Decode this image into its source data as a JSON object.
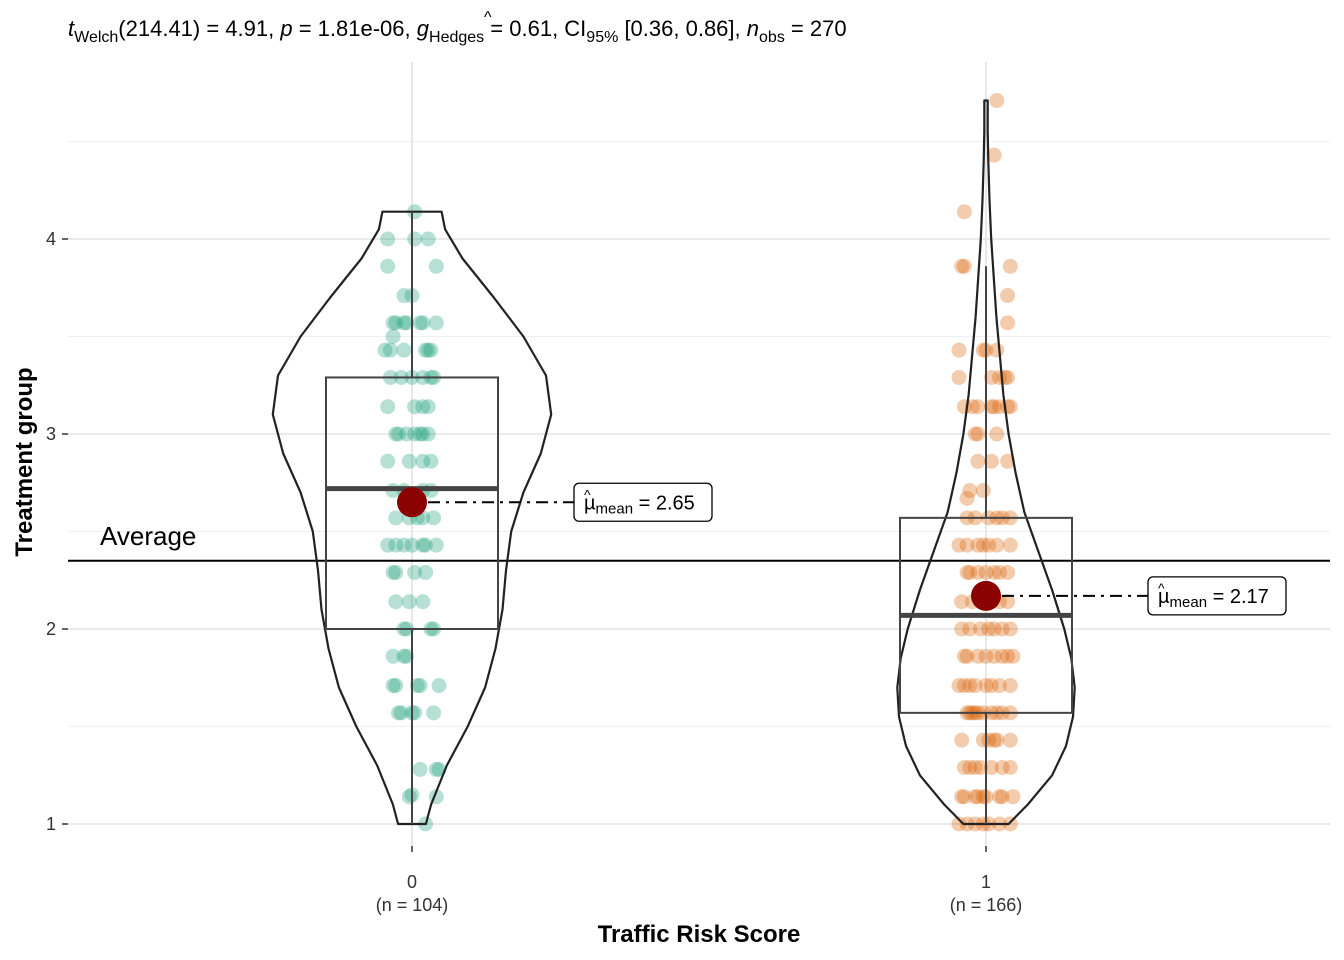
{
  "chart_data": {
    "type": "violin-box-scatter",
    "subtitle": {
      "t": "t",
      "t_sub": "Welch",
      "df_stat": "(214.41) = 4.91, ",
      "p": "p",
      "p_val": " = 1.81e-06, ",
      "g": "g",
      "g_hat": "^",
      "g_sub": "Hedges",
      "g_val": " = 0.61, CI",
      "ci_sub": "95%",
      "ci_val": " [0.36, 0.86], ",
      "n": "n",
      "n_sub": "obs",
      "n_val": " = 270"
    },
    "xlabel": "Traffic Risk Score",
    "ylabel": "Treatment group",
    "yticks": [
      1,
      2,
      3,
      4
    ],
    "ylim": [
      0.9,
      4.88
    ],
    "reference_line": {
      "value": 2.35,
      "label": "Average"
    },
    "groups": [
      {
        "category": "0",
        "n_label": "(n = 104)",
        "color": "#1B9E77",
        "mean": 2.65,
        "mean_label_mu": "µ",
        "mean_label_sub": "mean",
        "mean_label_val": " = 2.65",
        "box": {
          "q1": 2.0,
          "median": 2.72,
          "q3": 3.29,
          "whisker_low": 1.0,
          "whisker_high": 4.14
        },
        "violin": {
          "y": [
            1.0,
            1.1,
            1.3,
            1.5,
            1.7,
            1.9,
            2.1,
            2.3,
            2.5,
            2.7,
            2.9,
            3.1,
            3.3,
            3.5,
            3.7,
            3.9,
            4.05,
            4.14
          ],
          "w": [
            0.08,
            0.11,
            0.2,
            0.32,
            0.42,
            0.48,
            0.52,
            0.54,
            0.57,
            0.64,
            0.74,
            0.8,
            0.77,
            0.64,
            0.47,
            0.29,
            0.19,
            0.17
          ]
        },
        "points": [
          [
            0.05,
            1.0
          ],
          [
            0.0,
            1.15
          ],
          [
            -0.01,
            1.14
          ],
          [
            0.09,
            1.14
          ],
          [
            0.1,
            1.28
          ],
          [
            0.03,
            1.28
          ],
          [
            0.09,
            1.28
          ],
          [
            -0.05,
            1.57
          ],
          [
            -0.04,
            1.57
          ],
          [
            0.0,
            1.57
          ],
          [
            0.01,
            1.57
          ],
          [
            0.08,
            1.57
          ],
          [
            -0.07,
            1.71
          ],
          [
            -0.06,
            1.71
          ],
          [
            0.02,
            1.71
          ],
          [
            0.03,
            1.71
          ],
          [
            0.1,
            1.71
          ],
          [
            -0.07,
            1.86
          ],
          [
            -0.03,
            1.86
          ],
          [
            -0.02,
            1.86
          ],
          [
            -0.03,
            2.0
          ],
          [
            -0.02,
            2.0
          ],
          [
            0.07,
            2.0
          ],
          [
            0.08,
            2.0
          ],
          [
            -0.06,
            2.14
          ],
          [
            -0.01,
            2.14
          ],
          [
            0.04,
            2.14
          ],
          [
            -0.07,
            2.29
          ],
          [
            -0.06,
            2.29
          ],
          [
            0.01,
            2.29
          ],
          [
            0.05,
            2.29
          ],
          [
            -0.09,
            2.43
          ],
          [
            -0.06,
            2.43
          ],
          [
            -0.03,
            2.43
          ],
          [
            0.0,
            2.43
          ],
          [
            0.04,
            2.43
          ],
          [
            0.05,
            2.43
          ],
          [
            0.09,
            2.43
          ],
          [
            -0.06,
            2.57
          ],
          [
            -0.01,
            2.57
          ],
          [
            0.02,
            2.57
          ],
          [
            0.04,
            2.57
          ],
          [
            0.08,
            2.57
          ],
          [
            -0.07,
            2.71
          ],
          [
            -0.03,
            2.71
          ],
          [
            0.04,
            2.71
          ],
          [
            0.07,
            2.71
          ],
          [
            -0.09,
            2.86
          ],
          [
            -0.01,
            2.86
          ],
          [
            0.04,
            2.86
          ],
          [
            0.07,
            2.86
          ],
          [
            -0.06,
            3.0
          ],
          [
            -0.05,
            3.0
          ],
          [
            -0.02,
            3.0
          ],
          [
            0.01,
            3.0
          ],
          [
            0.03,
            3.0
          ],
          [
            0.04,
            3.0
          ],
          [
            0.06,
            3.0
          ],
          [
            -0.09,
            3.14
          ],
          [
            0.01,
            3.14
          ],
          [
            0.04,
            3.14
          ],
          [
            0.06,
            3.14
          ],
          [
            -0.08,
            3.29
          ],
          [
            -0.04,
            3.29
          ],
          [
            0.0,
            3.29
          ],
          [
            0.04,
            3.29
          ],
          [
            0.07,
            3.29
          ],
          [
            0.08,
            3.29
          ],
          [
            -0.1,
            3.43
          ],
          [
            -0.08,
            3.43
          ],
          [
            -0.03,
            3.43
          ],
          [
            0.05,
            3.43
          ],
          [
            0.06,
            3.43
          ],
          [
            0.07,
            3.43
          ],
          [
            -0.07,
            3.5
          ],
          [
            -0.07,
            3.57
          ],
          [
            -0.06,
            3.57
          ],
          [
            -0.03,
            3.57
          ],
          [
            -0.02,
            3.57
          ],
          [
            0.03,
            3.57
          ],
          [
            0.04,
            3.57
          ],
          [
            0.09,
            3.57
          ],
          [
            -0.03,
            3.71
          ],
          [
            0.0,
            3.71
          ],
          [
            -0.09,
            3.86
          ],
          [
            0.09,
            3.86
          ],
          [
            -0.09,
            4.0
          ],
          [
            0.01,
            4.0
          ],
          [
            0.06,
            4.0
          ],
          [
            0.01,
            4.14
          ]
        ]
      },
      {
        "category": "1",
        "n_label": "(n = 166)",
        "color": "#D95F02",
        "mean": 2.17,
        "mean_label_mu": "µ",
        "mean_label_sub": "mean",
        "mean_label_val": " = 2.17",
        "box": {
          "q1": 1.57,
          "median": 2.07,
          "q3": 2.57,
          "whisker_low": 1.0,
          "whisker_high": 3.86
        },
        "violin": {
          "y": [
            1.0,
            1.1,
            1.25,
            1.4,
            1.55,
            1.7,
            1.85,
            2.0,
            2.2,
            2.4,
            2.6,
            2.8,
            3.0,
            3.2,
            3.4,
            3.6,
            3.8,
            4.0,
            4.2,
            4.4,
            4.55,
            4.65,
            4.71
          ],
          "w": [
            0.13,
            0.24,
            0.38,
            0.46,
            0.5,
            0.51,
            0.49,
            0.45,
            0.38,
            0.3,
            0.22,
            0.17,
            0.13,
            0.1,
            0.08,
            0.06,
            0.045,
            0.03,
            0.02,
            0.013,
            0.01,
            0.01,
            0.01
          ]
        },
        "points": [
          [
            -0.1,
            1.0
          ],
          [
            -0.07,
            1.0
          ],
          [
            -0.04,
            1.0
          ],
          [
            -0.01,
            1.0
          ],
          [
            0.01,
            1.0
          ],
          [
            0.05,
            1.0
          ],
          [
            0.09,
            1.0
          ],
          [
            -0.09,
            1.14
          ],
          [
            -0.08,
            1.14
          ],
          [
            -0.04,
            1.14
          ],
          [
            -0.03,
            1.14
          ],
          [
            -0.01,
            1.14
          ],
          [
            0.0,
            1.14
          ],
          [
            0.05,
            1.14
          ],
          [
            0.06,
            1.14
          ],
          [
            0.1,
            1.14
          ],
          [
            -0.08,
            1.29
          ],
          [
            -0.06,
            1.29
          ],
          [
            -0.04,
            1.29
          ],
          [
            -0.02,
            1.29
          ],
          [
            0.02,
            1.29
          ],
          [
            0.06,
            1.29
          ],
          [
            0.09,
            1.29
          ],
          [
            -0.09,
            1.43
          ],
          [
            -0.01,
            1.43
          ],
          [
            0.01,
            1.43
          ],
          [
            0.03,
            1.43
          ],
          [
            0.04,
            1.43
          ],
          [
            0.09,
            1.43
          ],
          [
            -0.07,
            1.57
          ],
          [
            -0.06,
            1.57
          ],
          [
            -0.05,
            1.57
          ],
          [
            -0.04,
            1.57
          ],
          [
            -0.03,
            1.57
          ],
          [
            -0.01,
            1.57
          ],
          [
            0.02,
            1.57
          ],
          [
            0.04,
            1.57
          ],
          [
            0.06,
            1.57
          ],
          [
            0.09,
            1.57
          ],
          [
            -0.1,
            1.71
          ],
          [
            -0.08,
            1.71
          ],
          [
            -0.06,
            1.71
          ],
          [
            -0.04,
            1.71
          ],
          [
            0.0,
            1.71
          ],
          [
            0.02,
            1.71
          ],
          [
            0.05,
            1.71
          ],
          [
            0.09,
            1.71
          ],
          [
            -0.08,
            1.86
          ],
          [
            -0.07,
            1.86
          ],
          [
            -0.03,
            1.86
          ],
          [
            0.0,
            1.86
          ],
          [
            0.03,
            1.86
          ],
          [
            0.06,
            1.86
          ],
          [
            0.08,
            1.86
          ],
          [
            0.1,
            1.86
          ],
          [
            -0.09,
            2.0
          ],
          [
            -0.06,
            2.0
          ],
          [
            -0.02,
            2.0
          ],
          [
            0.01,
            2.0
          ],
          [
            0.03,
            2.0
          ],
          [
            0.06,
            2.0
          ],
          [
            0.09,
            2.0
          ],
          [
            -0.09,
            2.14
          ],
          [
            -0.05,
            2.14
          ],
          [
            -0.01,
            2.14
          ],
          [
            0.02,
            2.14
          ],
          [
            0.05,
            2.14
          ],
          [
            0.08,
            2.14
          ],
          [
            -0.07,
            2.29
          ],
          [
            -0.06,
            2.29
          ],
          [
            -0.03,
            2.29
          ],
          [
            0.0,
            2.29
          ],
          [
            0.03,
            2.29
          ],
          [
            0.05,
            2.29
          ],
          [
            0.08,
            2.29
          ],
          [
            -0.1,
            2.43
          ],
          [
            -0.07,
            2.43
          ],
          [
            -0.03,
            2.43
          ],
          [
            -0.01,
            2.43
          ],
          [
            0.01,
            2.43
          ],
          [
            0.04,
            2.43
          ],
          [
            0.09,
            2.43
          ],
          [
            -0.07,
            2.57
          ],
          [
            -0.04,
            2.57
          ],
          [
            0.01,
            2.57
          ],
          [
            0.04,
            2.57
          ],
          [
            0.06,
            2.57
          ],
          [
            0.09,
            2.57
          ],
          [
            -0.07,
            2.67
          ],
          [
            -0.06,
            2.71
          ],
          [
            -0.01,
            2.71
          ],
          [
            -0.03,
            2.86
          ],
          [
            0.02,
            2.86
          ],
          [
            0.08,
            2.86
          ],
          [
            -0.04,
            3.0
          ],
          [
            -0.03,
            3.0
          ],
          [
            0.04,
            3.0
          ],
          [
            -0.08,
            3.14
          ],
          [
            -0.05,
            3.14
          ],
          [
            -0.03,
            3.14
          ],
          [
            0.02,
            3.14
          ],
          [
            0.03,
            3.14
          ],
          [
            0.05,
            3.14
          ],
          [
            0.08,
            3.14
          ],
          [
            0.09,
            3.14
          ],
          [
            -0.1,
            3.29
          ],
          [
            0.02,
            3.29
          ],
          [
            0.05,
            3.29
          ],
          [
            0.07,
            3.29
          ],
          [
            0.08,
            3.29
          ],
          [
            -0.1,
            3.43
          ],
          [
            -0.01,
            3.43
          ],
          [
            0.0,
            3.43
          ],
          [
            0.04,
            3.43
          ],
          [
            0.08,
            3.57
          ],
          [
            0.08,
            3.71
          ],
          [
            -0.09,
            3.86
          ],
          [
            -0.08,
            3.86
          ],
          [
            0.09,
            3.86
          ],
          [
            -0.08,
            4.14
          ],
          [
            0.03,
            4.43
          ],
          [
            0.04,
            4.71
          ]
        ]
      }
    ]
  }
}
